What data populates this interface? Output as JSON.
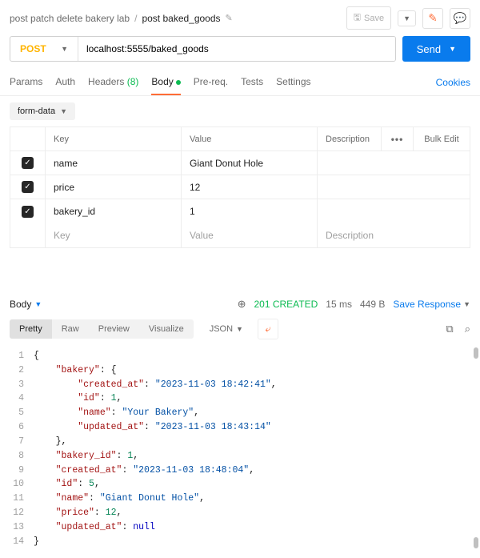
{
  "breadcrumb": {
    "parent": "post patch delete bakery lab",
    "current": "post baked_goods"
  },
  "topbar": {
    "save": "Save"
  },
  "request": {
    "method": "POST",
    "url": "localhost:5555/baked_goods",
    "send": "Send"
  },
  "tabs": {
    "params": "Params",
    "auth": "Auth",
    "headers": "Headers",
    "headers_count": "(8)",
    "body": "Body",
    "prereq": "Pre-req.",
    "tests": "Tests",
    "settings": "Settings",
    "cookies": "Cookies"
  },
  "body_mode": "form-data",
  "kv": {
    "head_key": "Key",
    "head_value": "Value",
    "head_desc": "Description",
    "head_bulk": "Bulk Edit",
    "rows": [
      {
        "key": "name",
        "value": "Giant Donut Hole"
      },
      {
        "key": "price",
        "value": "12"
      },
      {
        "key": "bakery_id",
        "value": "1"
      }
    ],
    "ph_key": "Key",
    "ph_value": "Value",
    "ph_desc": "Description"
  },
  "response": {
    "tab": "Body",
    "status": "201 CREATED",
    "time": "15 ms",
    "size": "449 B",
    "save": "Save Response",
    "views": {
      "pretty": "Pretty",
      "raw": "Raw",
      "preview": "Preview",
      "visualize": "Visualize"
    },
    "format": "JSON"
  },
  "json_lines": [
    {
      "n": 1,
      "seg": [
        {
          "t": "{",
          "c": "punc"
        }
      ]
    },
    {
      "n": 2,
      "seg": [
        {
          "t": "    ",
          "c": ""
        },
        {
          "t": "\"bakery\"",
          "c": "k"
        },
        {
          "t": ": {",
          "c": "punc"
        }
      ]
    },
    {
      "n": 3,
      "seg": [
        {
          "t": "        ",
          "c": ""
        },
        {
          "t": "\"created_at\"",
          "c": "k"
        },
        {
          "t": ": ",
          "c": "punc"
        },
        {
          "t": "\"2023-11-03 18:42:41\"",
          "c": "s"
        },
        {
          "t": ",",
          "c": "punc"
        }
      ]
    },
    {
      "n": 4,
      "seg": [
        {
          "t": "        ",
          "c": ""
        },
        {
          "t": "\"id\"",
          "c": "k"
        },
        {
          "t": ": ",
          "c": "punc"
        },
        {
          "t": "1",
          "c": "num"
        },
        {
          "t": ",",
          "c": "punc"
        }
      ]
    },
    {
      "n": 5,
      "seg": [
        {
          "t": "        ",
          "c": ""
        },
        {
          "t": "\"name\"",
          "c": "k"
        },
        {
          "t": ": ",
          "c": "punc"
        },
        {
          "t": "\"Your Bakery\"",
          "c": "s"
        },
        {
          "t": ",",
          "c": "punc"
        }
      ]
    },
    {
      "n": 6,
      "seg": [
        {
          "t": "        ",
          "c": ""
        },
        {
          "t": "\"updated_at\"",
          "c": "k"
        },
        {
          "t": ": ",
          "c": "punc"
        },
        {
          "t": "\"2023-11-03 18:43:14\"",
          "c": "s"
        }
      ]
    },
    {
      "n": 7,
      "seg": [
        {
          "t": "    ",
          "c": ""
        },
        {
          "t": "},",
          "c": "punc"
        }
      ]
    },
    {
      "n": 8,
      "seg": [
        {
          "t": "    ",
          "c": ""
        },
        {
          "t": "\"bakery_id\"",
          "c": "k"
        },
        {
          "t": ": ",
          "c": "punc"
        },
        {
          "t": "1",
          "c": "num"
        },
        {
          "t": ",",
          "c": "punc"
        }
      ]
    },
    {
      "n": 9,
      "seg": [
        {
          "t": "    ",
          "c": ""
        },
        {
          "t": "\"created_at\"",
          "c": "k"
        },
        {
          "t": ": ",
          "c": "punc"
        },
        {
          "t": "\"2023-11-03 18:48:04\"",
          "c": "s"
        },
        {
          "t": ",",
          "c": "punc"
        }
      ]
    },
    {
      "n": 10,
      "seg": [
        {
          "t": "    ",
          "c": ""
        },
        {
          "t": "\"id\"",
          "c": "k"
        },
        {
          "t": ": ",
          "c": "punc"
        },
        {
          "t": "5",
          "c": "num"
        },
        {
          "t": ",",
          "c": "punc"
        }
      ]
    },
    {
      "n": 11,
      "seg": [
        {
          "t": "    ",
          "c": ""
        },
        {
          "t": "\"name\"",
          "c": "k"
        },
        {
          "t": ": ",
          "c": "punc"
        },
        {
          "t": "\"Giant Donut Hole\"",
          "c": "s"
        },
        {
          "t": ",",
          "c": "punc"
        }
      ]
    },
    {
      "n": 12,
      "seg": [
        {
          "t": "    ",
          "c": ""
        },
        {
          "t": "\"price\"",
          "c": "k"
        },
        {
          "t": ": ",
          "c": "punc"
        },
        {
          "t": "12",
          "c": "num"
        },
        {
          "t": ",",
          "c": "punc"
        }
      ]
    },
    {
      "n": 13,
      "seg": [
        {
          "t": "    ",
          "c": ""
        },
        {
          "t": "\"updated_at\"",
          "c": "k"
        },
        {
          "t": ": ",
          "c": "punc"
        },
        {
          "t": "null",
          "c": "null"
        }
      ]
    },
    {
      "n": 14,
      "seg": [
        {
          "t": "}",
          "c": "punc"
        }
      ]
    }
  ]
}
